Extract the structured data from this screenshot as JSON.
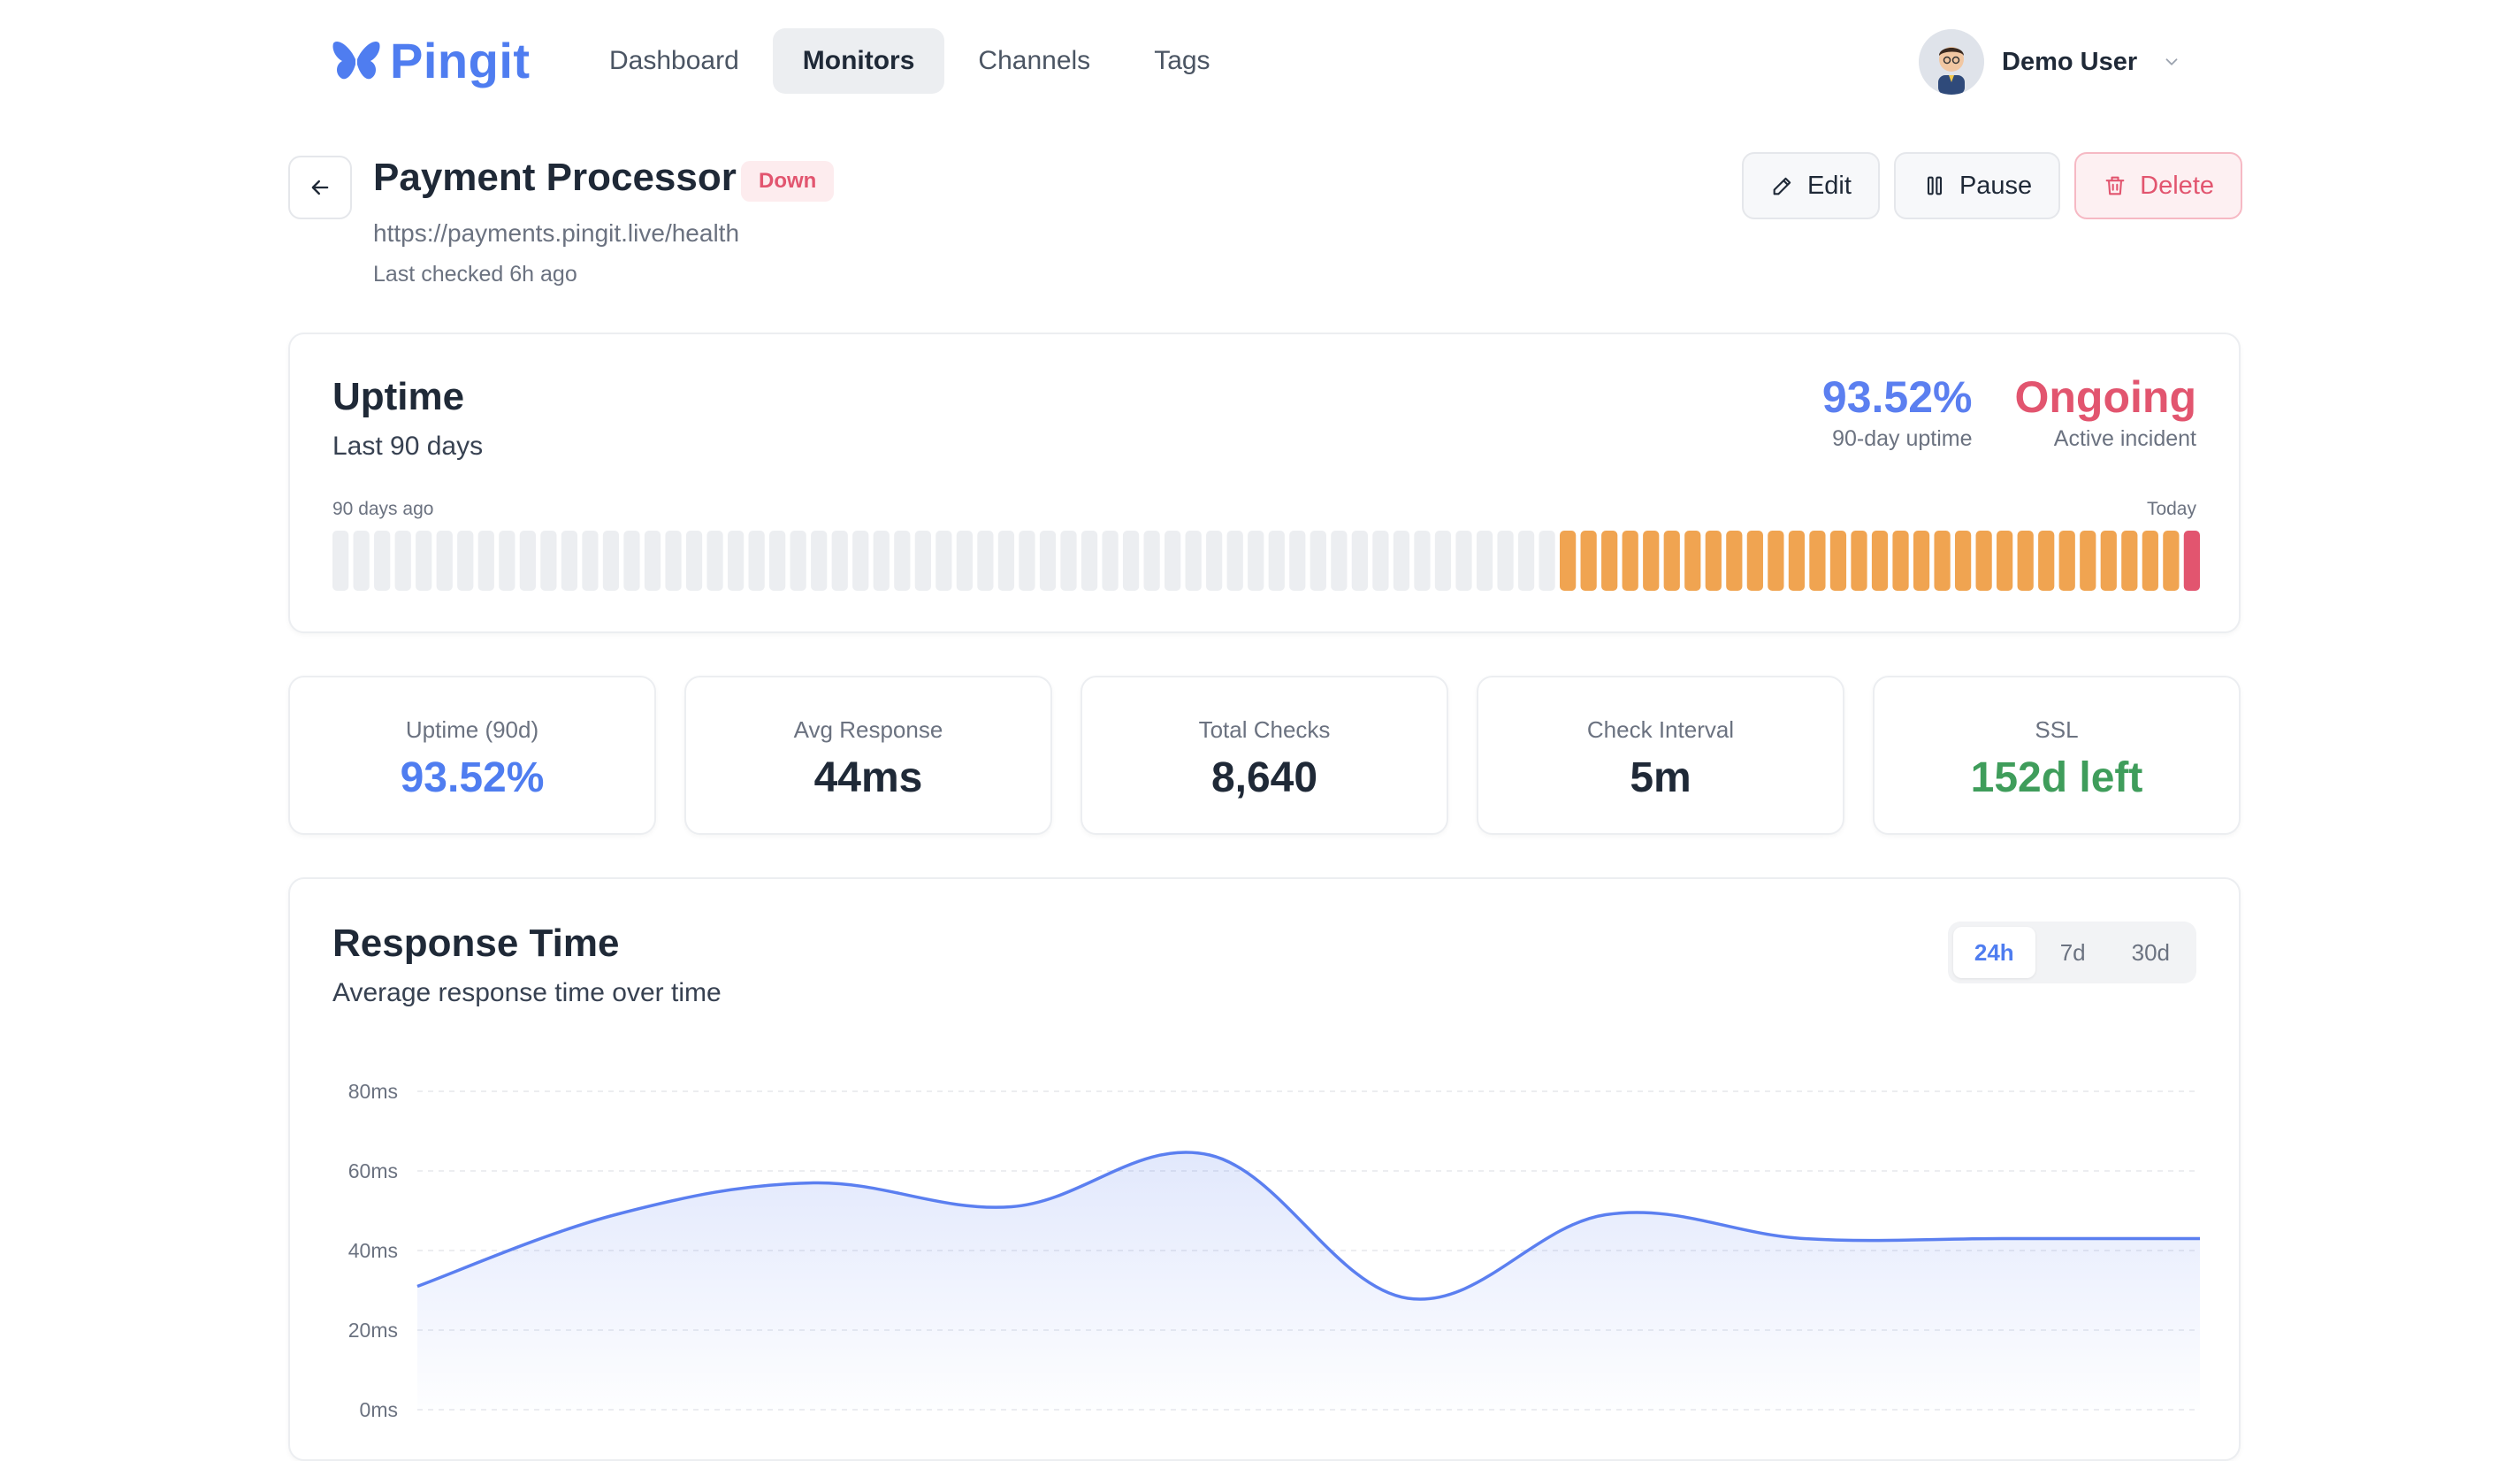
{
  "brand": {
    "name": "Pingit",
    "color": "#4f7df0"
  },
  "nav": {
    "items": [
      {
        "label": "Dashboard",
        "active": false
      },
      {
        "label": "Monitors",
        "active": true
      },
      {
        "label": "Channels",
        "active": false
      },
      {
        "label": "Tags",
        "active": false
      }
    ]
  },
  "user": {
    "name": "Demo User"
  },
  "monitor": {
    "name": "Payment Processor",
    "status": "Down",
    "url": "https://payments.pingit.live/health",
    "last_checked": "Last checked 6h ago"
  },
  "actions": {
    "edit": "Edit",
    "pause": "Pause",
    "delete": "Delete"
  },
  "uptime": {
    "title": "Uptime",
    "subtitle": "Last 90 days",
    "percent": "93.52%",
    "percent_label": "90-day uptime",
    "incident": "Ongoing",
    "incident_label": "Active incident",
    "start_label": "90 days ago",
    "end_label": "Today",
    "days": {
      "no_data": 59,
      "degraded": 30,
      "down": 1
    },
    "colors": {
      "no_data": "#eceef1",
      "degraded": "#f0a451",
      "down": "#e2556f"
    }
  },
  "metrics": [
    {
      "label": "Uptime (90d)",
      "value": "93.52%",
      "color": "#4f7df0"
    },
    {
      "label": "Avg Response",
      "value": "44ms",
      "color": "#1f2937"
    },
    {
      "label": "Total Checks",
      "value": "8,640",
      "color": "#1f2937"
    },
    {
      "label": "Check Interval",
      "value": "5m",
      "color": "#1f2937"
    },
    {
      "label": "SSL",
      "value": "152d left",
      "color": "#3f9d5b"
    }
  ],
  "response": {
    "title": "Response Time",
    "subtitle": "Average response time over time",
    "ranges": [
      {
        "label": "24h",
        "active": true
      },
      {
        "label": "7d",
        "active": false
      },
      {
        "label": "30d",
        "active": false
      }
    ]
  },
  "chart_data": {
    "type": "area",
    "x": [
      0,
      1,
      2,
      3,
      4,
      5,
      6,
      7,
      8,
      9
    ],
    "values": [
      31,
      49,
      57,
      51,
      64,
      28,
      49,
      43,
      43,
      43
    ],
    "ylim": [
      0,
      80
    ],
    "yticks": [
      "0ms",
      "20ms",
      "40ms",
      "60ms",
      "80ms"
    ],
    "grid": true,
    "color": "#5b7ff0"
  }
}
